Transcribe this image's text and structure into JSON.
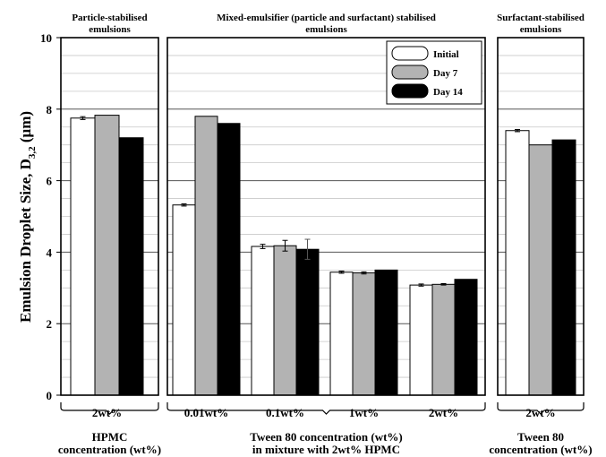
{
  "chart_data": {
    "type": "bar",
    "ylabel": "Emulsion Droplet  Size, D",
    "ylabel_sub": "3,2",
    "ylabel_unit": " (μm)",
    "ylim": [
      0,
      10
    ],
    "yticks": [
      "0",
      "2",
      "4",
      "6",
      "8",
      "10"
    ],
    "grid": true,
    "legend_position": "top-right of middle panel",
    "series": [
      {
        "name": "Initial",
        "color": "#ffffff"
      },
      {
        "name": "Day 7",
        "color": "#b3b3b3"
      },
      {
        "name": "Day 14",
        "color": "#000000"
      }
    ],
    "panels": [
      {
        "title": [
          "Particle-stabilised",
          "emulsions"
        ],
        "group_label": [
          "HPMC",
          "concentration (wt%)"
        ],
        "categories": [
          "2wt%"
        ],
        "values": [
          [
            7.75,
            7.83,
            7.2
          ]
        ],
        "errors": [
          [
            0.04,
            0,
            0
          ]
        ]
      },
      {
        "title": [
          "Mixed-emulsifier (particle and surfactant) stabilised",
          "emulsions"
        ],
        "group_label": [
          "Tween 80 concentration (wt%)",
          "in mixture with 2wt% HPMC"
        ],
        "categories": [
          "0.01wt%",
          "0.1wt%",
          "1wt%",
          "2wt%"
        ],
        "values": [
          [
            5.32,
            7.8,
            7.6
          ],
          [
            4.16,
            4.18,
            4.08
          ],
          [
            3.44,
            3.42,
            3.5
          ],
          [
            3.08,
            3.1,
            3.24
          ]
        ],
        "errors": [
          [
            0.03,
            0,
            0
          ],
          [
            0.06,
            0.15,
            0.28
          ],
          [
            0.03,
            0.03,
            0
          ],
          [
            0.03,
            0.02,
            0
          ]
        ]
      },
      {
        "title": [
          "Surfactant-stabilised",
          "emulsions"
        ],
        "group_label": [
          "Tween 80",
          "concentration (wt%)"
        ],
        "categories": [
          "2wt%"
        ],
        "values": [
          [
            7.4,
            7.0,
            7.14
          ]
        ],
        "errors": [
          [
            0.03,
            0,
            0
          ]
        ]
      }
    ]
  }
}
